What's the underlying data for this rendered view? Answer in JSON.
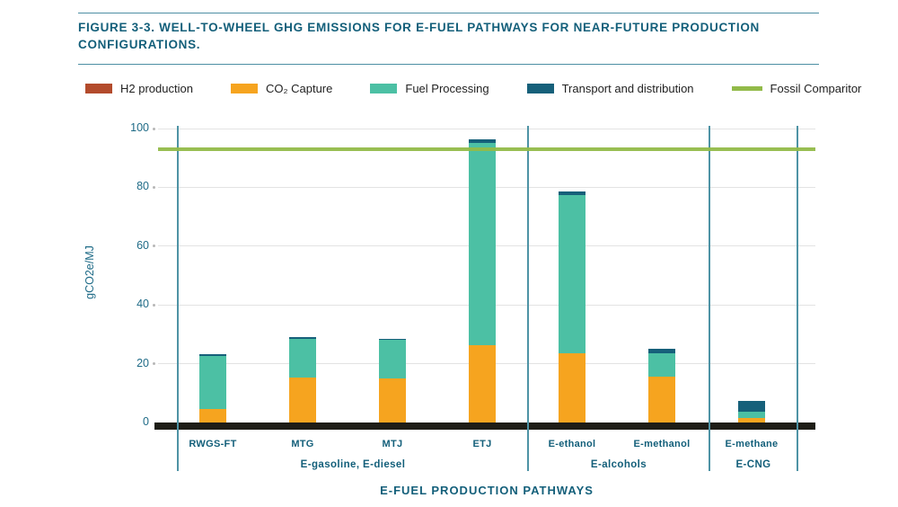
{
  "figure": {
    "title": "FIGURE 3-3. WELL-TO-WHEEL GHG EMISSIONS FOR E-FUEL PATHWAYS FOR NEAR-FUTURE PRODUCTION CONFIGURATIONS."
  },
  "legend": [
    {
      "label": "H2 production",
      "color": "#b34b2c",
      "swatch": "box"
    },
    {
      "label": "CO₂ Capture",
      "color": "#f6a41f",
      "swatch": "box"
    },
    {
      "label": "Fuel Processing",
      "color": "#4cc0a4",
      "swatch": "box"
    },
    {
      "label": "Transport and distribution",
      "color": "#16607a",
      "swatch": "box"
    },
    {
      "label": "Fossil Comparitor",
      "color": "#92ba49",
      "swatch": "line"
    }
  ],
  "chart_data": {
    "type": "bar",
    "stacked": true,
    "xlabel": "E-FUEL PRODUCTION PATHWAYS",
    "ylabel": "gCO2e/MJ",
    "ylim": [
      0,
      100
    ],
    "yticks": [
      0,
      20,
      40,
      60,
      80,
      100
    ],
    "grid": true,
    "legend_position": "top",
    "categories": [
      "RWGS-FT",
      "MTG",
      "MTJ",
      "ETJ",
      "E-ethanol",
      "E-methanol",
      "E-methane"
    ],
    "groups": [
      {
        "label": "E-gasoline, E-diesel",
        "categories": [
          "RWGS-FT",
          "MTG",
          "MTJ",
          "ETJ"
        ]
      },
      {
        "label": "E-alcohols",
        "categories": [
          "E-ethanol",
          "E-methanol"
        ]
      },
      {
        "label": "E-CNG",
        "categories": [
          "E-methane"
        ]
      }
    ],
    "series": [
      {
        "name": "H2 production",
        "color": "#b34b2c",
        "values": [
          0,
          0,
          0,
          0,
          0,
          0,
          0
        ]
      },
      {
        "name": "CO₂ Capture",
        "color": "#f6a41f",
        "values": [
          4.5,
          15.3,
          15.0,
          26.3,
          23.5,
          15.5,
          1.5
        ]
      },
      {
        "name": "Fuel Processing",
        "color": "#4cc0a4",
        "values": [
          18.0,
          13.2,
          13.0,
          68.9,
          53.8,
          8.0,
          2.2
        ]
      },
      {
        "name": "Transport and distribution",
        "color": "#16607a",
        "values": [
          0.8,
          0.7,
          0.4,
          1.2,
          1.3,
          1.5,
          3.5
        ]
      }
    ],
    "reference_line": {
      "label": "Fossil Comparitor",
      "value": 93,
      "color": "#92ba49"
    }
  }
}
